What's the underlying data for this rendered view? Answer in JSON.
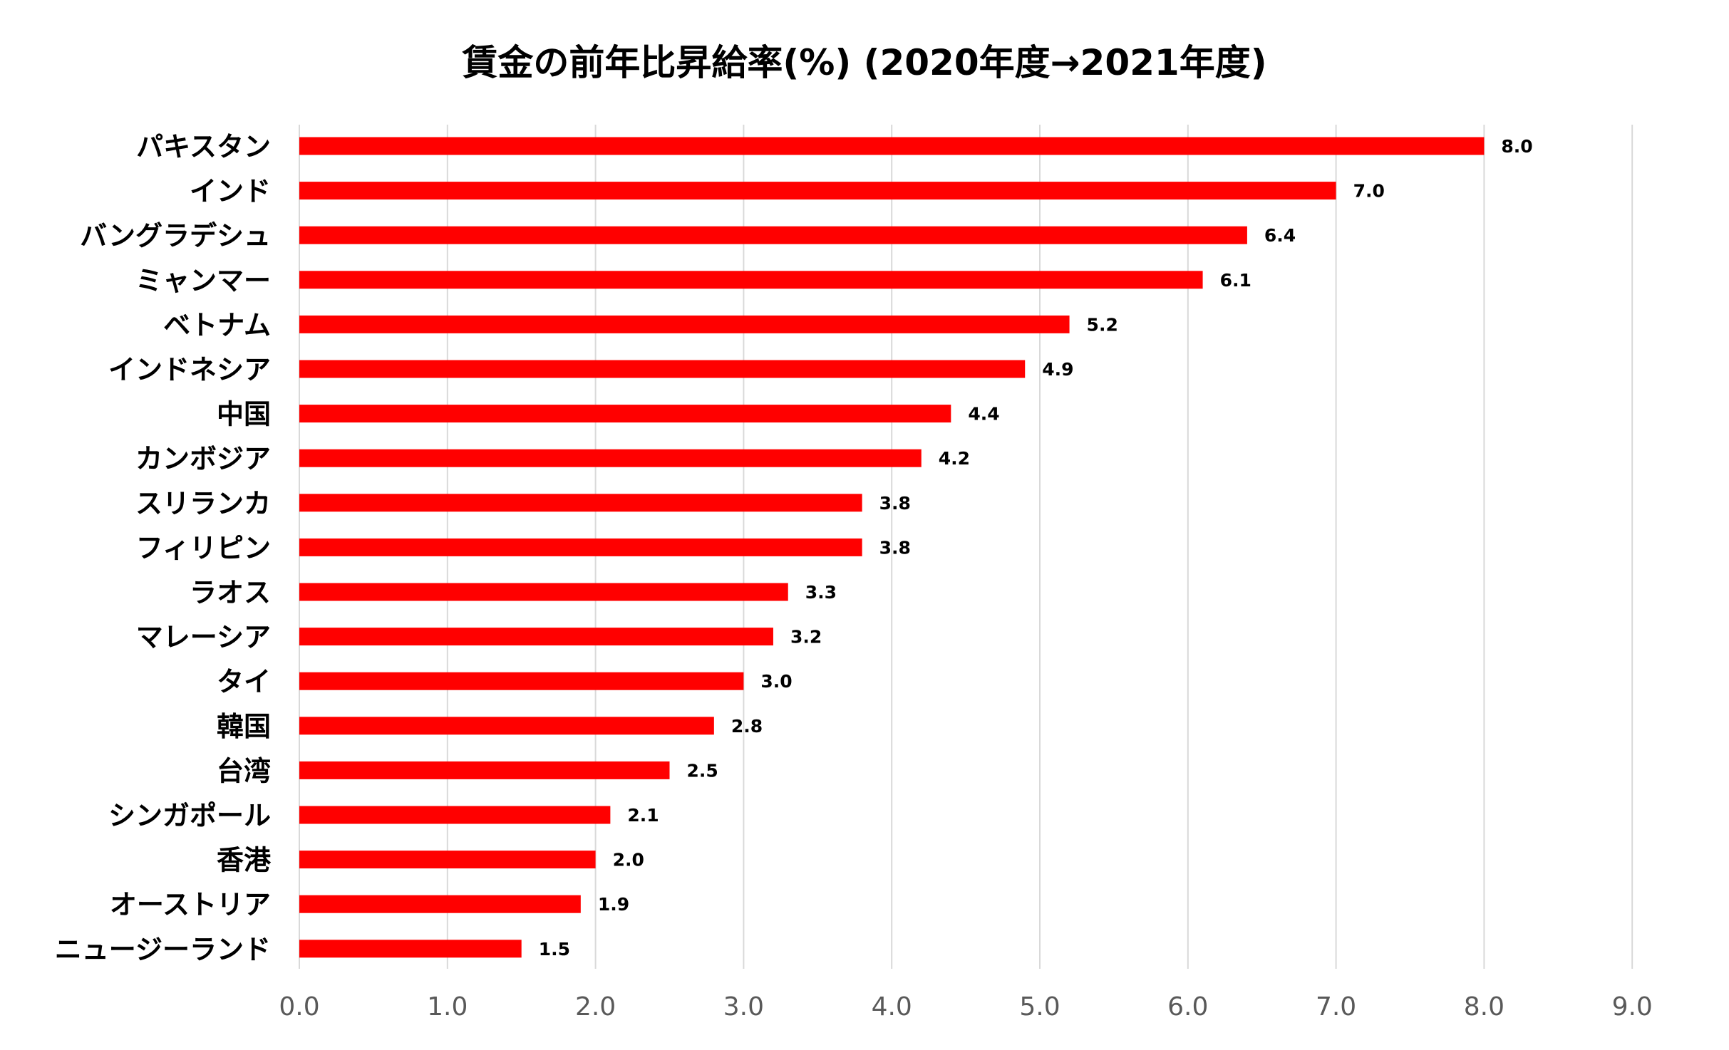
{
  "chart_data": {
    "type": "bar",
    "orientation": "horizontal",
    "title": "賃金の前年比昇給率(%) (2020年度→2021年度)",
    "categories": [
      "パキスタン",
      "インド",
      "バングラデシュ",
      "ミャンマー",
      "ベトナム",
      "インドネシア",
      "中国",
      "カンボジア",
      "スリランカ",
      "フィリピン",
      "ラオス",
      "マレーシア",
      "タイ",
      "韓国",
      "台湾",
      "シンガポール",
      "香港",
      "オーストリア",
      "ニュージーランド"
    ],
    "values": [
      8.0,
      7.0,
      6.4,
      6.1,
      5.2,
      4.9,
      4.4,
      4.2,
      3.8,
      3.8,
      3.3,
      3.2,
      3.0,
      2.8,
      2.5,
      2.1,
      2.0,
      1.9,
      1.5
    ],
    "data_labels": [
      "8.0",
      "7.0",
      "6.4",
      "6.1",
      "5.2",
      "4.9",
      "4.4",
      "4.2",
      "3.8",
      "3.8",
      "3.3",
      "3.2",
      "3.0",
      "2.8",
      "2.5",
      "2.1",
      "2.0",
      "1.9",
      "1.5"
    ],
    "xlim": [
      0,
      9
    ],
    "x_ticks": [
      "0.0",
      "1.0",
      "2.0",
      "3.0",
      "4.0",
      "5.0",
      "6.0",
      "7.0",
      "8.0",
      "9.0"
    ],
    "grid": "vertical",
    "legend": "none",
    "colors": {
      "bar": "#ff0000",
      "grid": "#d9d9d9",
      "tick_label": "#595959",
      "category_label": "#000000",
      "data_label": "#000000"
    }
  }
}
